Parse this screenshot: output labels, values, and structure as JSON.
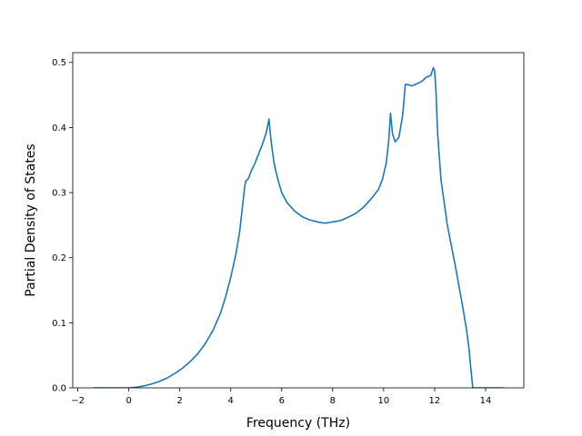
{
  "chart_data": {
    "type": "line",
    "title": "",
    "xlabel": "Frequency (THz)",
    "ylabel": "Partial Density of States",
    "xlim": [
      -2.2,
      15.5
    ],
    "ylim": [
      0.0,
      0.515
    ],
    "grid": false,
    "legend": "none",
    "x_ticks": [
      -2,
      0,
      2,
      4,
      6,
      8,
      10,
      12,
      14
    ],
    "y_ticks": [
      0.0,
      0.1,
      0.2,
      0.3,
      0.4,
      0.5
    ],
    "x_tick_labels": [
      "−2",
      "0",
      "2",
      "4",
      "6",
      "8",
      "10",
      "12",
      "14"
    ],
    "y_tick_labels": [
      "0.0",
      "0.1",
      "0.2",
      "0.3",
      "0.4",
      "0.5"
    ],
    "line_color": "#1f77b4",
    "series": [
      {
        "x": [
          -1.4,
          -1.0,
          -0.5,
          0.0,
          0.3,
          0.6,
          0.9,
          1.2,
          1.5,
          1.8,
          2.1,
          2.4,
          2.7,
          3.0,
          3.3,
          3.6,
          3.8,
          4.0,
          4.2,
          4.35,
          4.45,
          4.55,
          4.6,
          4.7,
          4.8,
          4.95,
          5.1,
          5.25,
          5.4,
          5.5,
          5.58,
          5.7,
          5.85,
          6.0,
          6.2,
          6.5,
          6.8,
          7.1,
          7.4,
          7.7,
          8.0,
          8.3,
          8.6,
          8.9,
          9.2,
          9.5,
          9.8,
          9.95,
          10.1,
          10.2,
          10.27,
          10.35,
          10.45,
          10.6,
          10.75,
          10.85,
          10.95,
          11.1,
          11.3,
          11.5,
          11.7,
          11.85,
          11.95,
          12.0,
          12.05,
          12.12,
          12.25,
          12.5,
          12.8,
          13.1,
          13.25,
          13.35,
          13.42,
          13.5,
          14.0,
          14.7
        ],
        "y": [
          0.0,
          0.0,
          0.0,
          0.0,
          0.001,
          0.003,
          0.006,
          0.01,
          0.015,
          0.022,
          0.03,
          0.04,
          0.052,
          0.068,
          0.088,
          0.115,
          0.14,
          0.17,
          0.205,
          0.24,
          0.275,
          0.31,
          0.318,
          0.322,
          0.333,
          0.345,
          0.36,
          0.375,
          0.393,
          0.413,
          0.38,
          0.345,
          0.32,
          0.3,
          0.285,
          0.272,
          0.263,
          0.258,
          0.255,
          0.253,
          0.255,
          0.257,
          0.262,
          0.268,
          0.277,
          0.29,
          0.305,
          0.32,
          0.345,
          0.38,
          0.422,
          0.39,
          0.378,
          0.385,
          0.42,
          0.466,
          0.466,
          0.464,
          0.467,
          0.471,
          0.478,
          0.48,
          0.492,
          0.487,
          0.46,
          0.39,
          0.32,
          0.25,
          0.19,
          0.125,
          0.09,
          0.06,
          0.03,
          0.0,
          0.0,
          0.0
        ]
      }
    ]
  }
}
